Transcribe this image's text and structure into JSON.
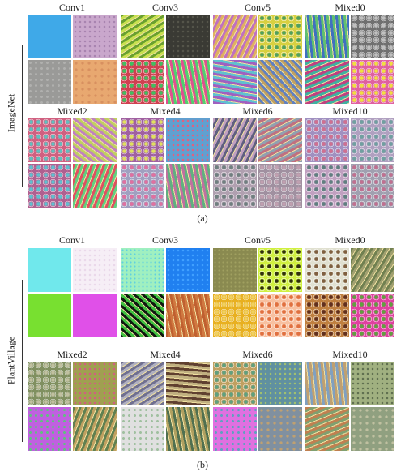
{
  "panels": [
    {
      "label": "ImageNet",
      "caption": "(a)",
      "rows": [
        [
          "Conv1",
          "Conv3",
          "Conv5",
          "Mixed0"
        ],
        [
          "Mixed2",
          "Mixed4",
          "Mixed6",
          "Mixed10"
        ]
      ]
    },
    {
      "label": "PlantVillage",
      "caption": "(b)",
      "rows": [
        [
          "Conv1",
          "Conv3",
          "Conv5",
          "Mixed0"
        ],
        [
          "Mixed2",
          "Mixed4",
          "Mixed6",
          "Mixed10"
        ]
      ]
    }
  ]
}
